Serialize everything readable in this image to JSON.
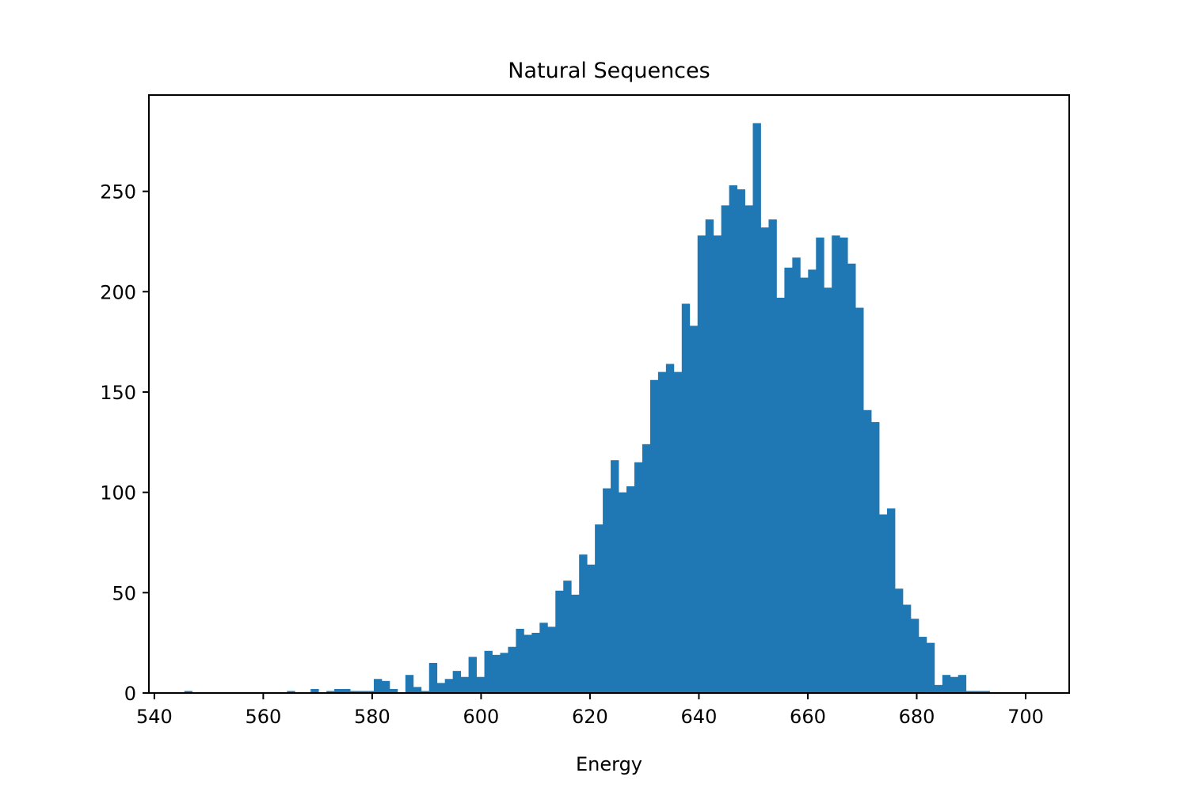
{
  "chart_data": {
    "type": "bar",
    "title": "Natural Sequences",
    "xlabel": "Energy",
    "ylabel": "",
    "bar_color": "#1f77b4",
    "xlim": [
      539,
      708
    ],
    "ylim": [
      0,
      298
    ],
    "grid": false,
    "xticks": [
      540,
      560,
      580,
      600,
      620,
      640,
      660,
      680,
      700
    ],
    "yticks": [
      0,
      50,
      100,
      150,
      200,
      250
    ],
    "bins_start": 545.5,
    "bin_width": 1.45,
    "counts": [
      1,
      0,
      0,
      0,
      0,
      0,
      0,
      0,
      0,
      0,
      0,
      0,
      0,
      1,
      0,
      0,
      2,
      0,
      1,
      2,
      2,
      1,
      1,
      1,
      7,
      6,
      2,
      0,
      9,
      3,
      1,
      15,
      5,
      7,
      11,
      8,
      18,
      8,
      21,
      19,
      20,
      23,
      32,
      29,
      30,
      35,
      33,
      51,
      56,
      49,
      69,
      64,
      84,
      102,
      116,
      100,
      103,
      115,
      124,
      156,
      160,
      164,
      160,
      194,
      183,
      228,
      236,
      228,
      243,
      253,
      251,
      243,
      284,
      232,
      236,
      197,
      212,
      217,
      207,
      211,
      227,
      202,
      228,
      227,
      214,
      192,
      141,
      135,
      89,
      92,
      52,
      44,
      37,
      28,
      25,
      4,
      9,
      8,
      9,
      1,
      1,
      1
    ]
  }
}
